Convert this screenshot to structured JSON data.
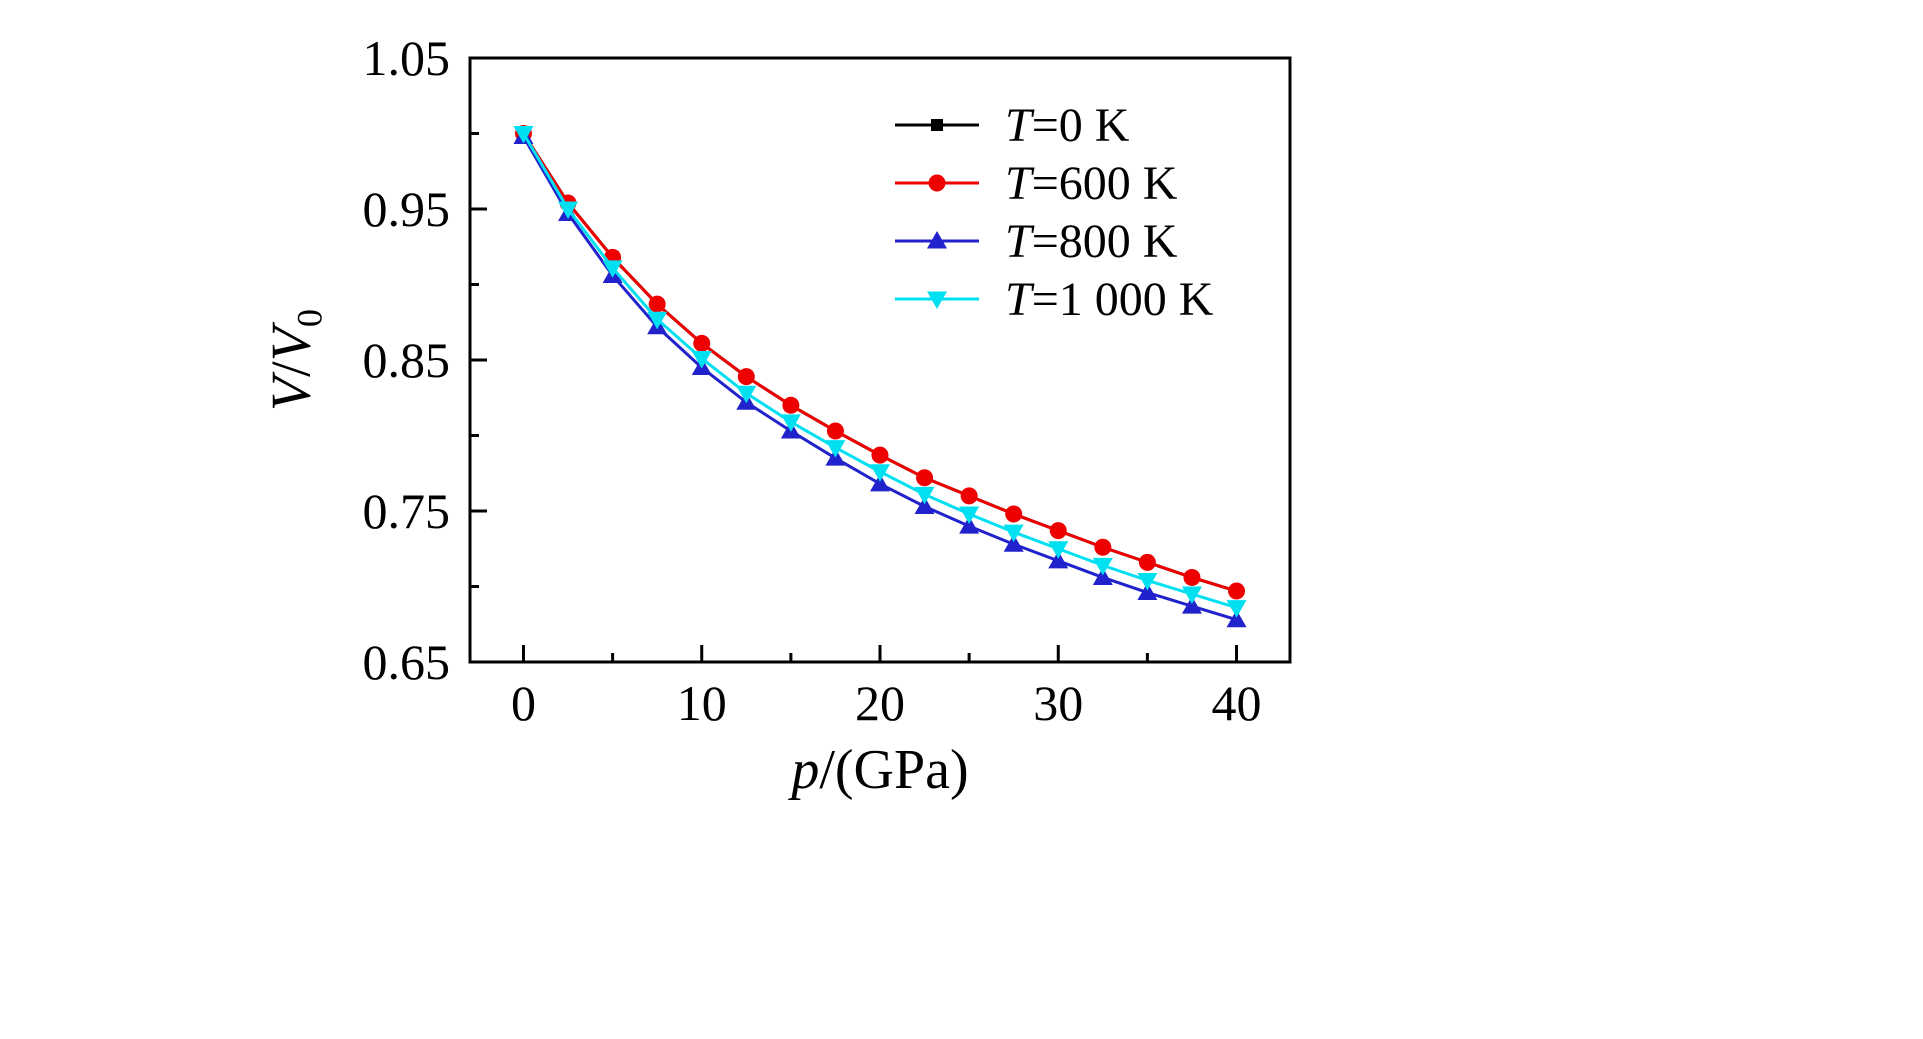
{
  "figure": {
    "background": "#ffffff",
    "frame_color": "#000000"
  },
  "chart_data": {
    "type": "line",
    "title": "",
    "xlabel": {
      "sym": "p",
      "rest": "/(GPa)"
    },
    "ylabel": {
      "num": "V",
      "slash": "/",
      "den": "V",
      "sub": "0"
    },
    "xlim": [
      -3,
      43
    ],
    "ylim": [
      0.65,
      1.05
    ],
    "grid": false,
    "legend_position": "upper-right",
    "x_ticks": [
      0,
      10,
      20,
      30,
      40
    ],
    "x_tick_labels": [
      "0",
      "10",
      "20",
      "30",
      "40"
    ],
    "x_minor_ticks": [
      5,
      15,
      25,
      35
    ],
    "y_ticks": [
      0.65,
      0.75,
      0.85,
      0.95,
      1.05
    ],
    "y_tick_labels": [
      "0.65",
      "0.75",
      "0.85",
      "0.95",
      "1.05"
    ],
    "y_minor_ticks": [
      0.7,
      0.8,
      0.9,
      1.0
    ],
    "x": [
      0,
      2.5,
      5,
      7.5,
      10,
      12.5,
      15,
      17.5,
      20,
      22.5,
      25,
      27.5,
      30,
      32.5,
      35,
      37.5,
      40
    ],
    "series": [
      {
        "name_prefix": "T",
        "name_rest": "=0 K",
        "color": "#000000",
        "marker": "square",
        "values": [
          1.0,
          0.954,
          0.918,
          0.887,
          0.861,
          0.839,
          0.82,
          0.803,
          0.787,
          0.772,
          0.76,
          0.748,
          0.737,
          0.726,
          0.716,
          0.706,
          0.697
        ]
      },
      {
        "name_prefix": "T",
        "name_rest": "=600 K",
        "color": "#ee0000",
        "marker": "circle",
        "values": [
          1.0,
          0.954,
          0.918,
          0.887,
          0.861,
          0.839,
          0.82,
          0.803,
          0.787,
          0.772,
          0.76,
          0.748,
          0.737,
          0.726,
          0.716,
          0.706,
          0.697
        ]
      },
      {
        "name_prefix": "T",
        "name_rest": "=800 K",
        "color": "#2222cc",
        "marker": "triangle-up",
        "values": [
          0.998,
          0.947,
          0.906,
          0.872,
          0.845,
          0.822,
          0.803,
          0.785,
          0.768,
          0.753,
          0.74,
          0.728,
          0.717,
          0.706,
          0.696,
          0.687,
          0.678
        ]
      },
      {
        "name_prefix": "T",
        "name_rest": "=1 000 K",
        "color": "#00e0f0",
        "marker": "triangle-down",
        "values": [
          1.0,
          0.95,
          0.911,
          0.877,
          0.851,
          0.828,
          0.809,
          0.792,
          0.776,
          0.761,
          0.748,
          0.736,
          0.725,
          0.714,
          0.704,
          0.695,
          0.686
        ]
      }
    ]
  }
}
